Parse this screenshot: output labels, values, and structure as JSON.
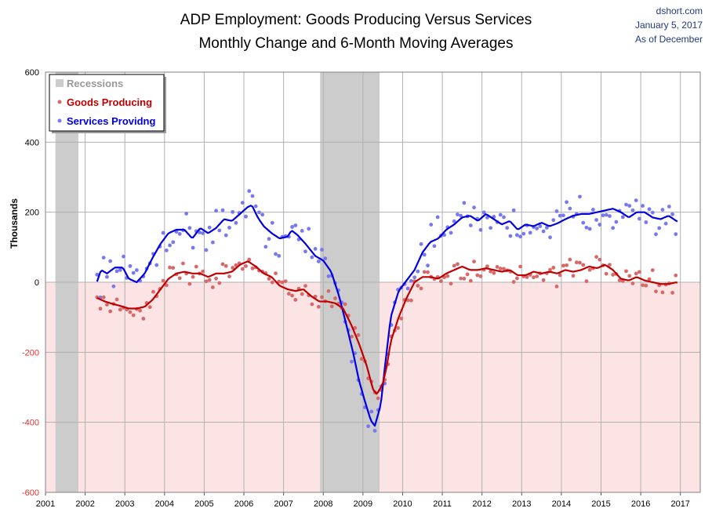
{
  "chart_data": {
    "type": "scatter",
    "title_line1": "ADP Employment: Goods Producing Versus Services",
    "title_line2": "Monthly Change and 6-Month Moving Averages",
    "source": [
      "dshort.com",
      "January 5, 2017",
      "As of December"
    ],
    "ylabel": "Thousands",
    "ylim": [
      -600,
      600
    ],
    "xlim": [
      2001.0,
      2017.5
    ],
    "yticks": [
      "600",
      "400",
      "200",
      "0",
      "-200",
      "-400",
      "-600"
    ],
    "xticks": [
      "2001",
      "2002",
      "2003",
      "2004",
      "2005",
      "2006",
      "2007",
      "2008",
      "2009",
      "2010",
      "2011",
      "2012",
      "2013",
      "2014",
      "2015",
      "2016",
      "2017"
    ],
    "grid": true,
    "legend_position": "top-left",
    "legend": [
      "Recessions",
      "Goods Producing",
      "Services Providng"
    ],
    "recessions": [
      [
        2001.25,
        2001.83
      ],
      [
        2007.92,
        2009.42
      ]
    ],
    "colors": {
      "goods": "#c00000",
      "goods_points": "#d96868",
      "services": "#0000e0",
      "services_points": "#7878f0",
      "recession": "#cccccc",
      "negative_zone": "#fde4e4",
      "negative_tick": "#e03030"
    },
    "series": [
      {
        "name": "Services Providng",
        "ma_knots": [
          [
            2002.3,
            2
          ],
          [
            2002.4,
            35
          ],
          [
            2002.55,
            25
          ],
          [
            2002.75,
            42
          ],
          [
            2002.95,
            42
          ],
          [
            2003.1,
            10
          ],
          [
            2003.3,
            0
          ],
          [
            2003.5,
            25
          ],
          [
            2003.7,
            70
          ],
          [
            2003.9,
            110
          ],
          [
            2004.1,
            140
          ],
          [
            2004.3,
            150
          ],
          [
            2004.5,
            150
          ],
          [
            2004.7,
            125
          ],
          [
            2004.9,
            155
          ],
          [
            2005.1,
            140
          ],
          [
            2005.3,
            155
          ],
          [
            2005.5,
            180
          ],
          [
            2005.7,
            175
          ],
          [
            2005.9,
            195
          ],
          [
            2006.1,
            215
          ],
          [
            2006.2,
            220
          ],
          [
            2006.35,
            185
          ],
          [
            2006.5,
            160
          ],
          [
            2006.7,
            140
          ],
          [
            2006.9,
            125
          ],
          [
            2007.1,
            130
          ],
          [
            2007.2,
            148
          ],
          [
            2007.35,
            135
          ],
          [
            2007.55,
            110
          ],
          [
            2007.8,
            75
          ],
          [
            2008.0,
            62
          ],
          [
            2008.2,
            30
          ],
          [
            2008.4,
            -40
          ],
          [
            2008.6,
            -130
          ],
          [
            2008.75,
            -200
          ],
          [
            2008.9,
            -280
          ],
          [
            2009.05,
            -340
          ],
          [
            2009.2,
            -395
          ],
          [
            2009.3,
            -410
          ],
          [
            2009.45,
            -350
          ],
          [
            2009.55,
            -245
          ],
          [
            2009.7,
            -100
          ],
          [
            2009.9,
            -25
          ],
          [
            2010.1,
            5
          ],
          [
            2010.3,
            35
          ],
          [
            2010.5,
            85
          ],
          [
            2010.7,
            115
          ],
          [
            2010.9,
            125
          ],
          [
            2011.1,
            150
          ],
          [
            2011.3,
            165
          ],
          [
            2011.5,
            185
          ],
          [
            2011.7,
            190
          ],
          [
            2011.9,
            175
          ],
          [
            2012.1,
            195
          ],
          [
            2012.3,
            180
          ],
          [
            2012.5,
            165
          ],
          [
            2012.7,
            175
          ],
          [
            2012.9,
            150
          ],
          [
            2013.1,
            165
          ],
          [
            2013.3,
            160
          ],
          [
            2013.5,
            170
          ],
          [
            2013.7,
            160
          ],
          [
            2013.9,
            168
          ],
          [
            2014.1,
            180
          ],
          [
            2014.3,
            190
          ],
          [
            2014.5,
            195
          ],
          [
            2014.7,
            195
          ],
          [
            2014.9,
            200
          ],
          [
            2015.1,
            205
          ],
          [
            2015.3,
            210
          ],
          [
            2015.5,
            200
          ],
          [
            2015.7,
            185
          ],
          [
            2015.9,
            200
          ],
          [
            2016.1,
            200
          ],
          [
            2016.3,
            185
          ],
          [
            2016.5,
            180
          ],
          [
            2016.7,
            190
          ],
          [
            2016.9,
            175
          ],
          [
            2016.95,
            172
          ]
        ]
      },
      {
        "name": "Goods Producing",
        "ma_knots": [
          [
            2002.3,
            -45
          ],
          [
            2002.5,
            -55
          ],
          [
            2002.7,
            -62
          ],
          [
            2002.9,
            -68
          ],
          [
            2003.1,
            -75
          ],
          [
            2003.3,
            -75
          ],
          [
            2003.5,
            -70
          ],
          [
            2003.7,
            -50
          ],
          [
            2003.9,
            -20
          ],
          [
            2004.1,
            10
          ],
          [
            2004.3,
            25
          ],
          [
            2004.5,
            30
          ],
          [
            2004.7,
            25
          ],
          [
            2004.9,
            25
          ],
          [
            2005.1,
            15
          ],
          [
            2005.3,
            25
          ],
          [
            2005.5,
            25
          ],
          [
            2005.7,
            30
          ],
          [
            2005.9,
            50
          ],
          [
            2006.1,
            60
          ],
          [
            2006.3,
            45
          ],
          [
            2006.5,
            25
          ],
          [
            2006.7,
            15
          ],
          [
            2006.9,
            -10
          ],
          [
            2007.1,
            -20
          ],
          [
            2007.3,
            -25
          ],
          [
            2007.5,
            -20
          ],
          [
            2007.7,
            -40
          ],
          [
            2007.9,
            -55
          ],
          [
            2008.1,
            -55
          ],
          [
            2008.3,
            -60
          ],
          [
            2008.5,
            -75
          ],
          [
            2008.7,
            -120
          ],
          [
            2008.9,
            -175
          ],
          [
            2009.1,
            -240
          ],
          [
            2009.25,
            -305
          ],
          [
            2009.35,
            -320
          ],
          [
            2009.5,
            -290
          ],
          [
            2009.6,
            -240
          ],
          [
            2009.7,
            -170
          ],
          [
            2009.9,
            -100
          ],
          [
            2010.1,
            -45
          ],
          [
            2010.3,
            0
          ],
          [
            2010.5,
            15
          ],
          [
            2010.7,
            15
          ],
          [
            2010.9,
            10
          ],
          [
            2011.1,
            25
          ],
          [
            2011.3,
            35
          ],
          [
            2011.5,
            45
          ],
          [
            2011.7,
            35
          ],
          [
            2011.9,
            35
          ],
          [
            2012.1,
            40
          ],
          [
            2012.3,
            35
          ],
          [
            2012.5,
            30
          ],
          [
            2012.7,
            35
          ],
          [
            2012.9,
            20
          ],
          [
            2013.1,
            20
          ],
          [
            2013.3,
            30
          ],
          [
            2013.5,
            25
          ],
          [
            2013.7,
            30
          ],
          [
            2013.9,
            25
          ],
          [
            2014.1,
            35
          ],
          [
            2014.3,
            30
          ],
          [
            2014.5,
            35
          ],
          [
            2014.7,
            45
          ],
          [
            2014.9,
            40
          ],
          [
            2015.1,
            50
          ],
          [
            2015.3,
            35
          ],
          [
            2015.5,
            10
          ],
          [
            2015.7,
            5
          ],
          [
            2015.9,
            15
          ],
          [
            2016.1,
            5
          ],
          [
            2016.3,
            0
          ],
          [
            2016.5,
            -5
          ],
          [
            2016.7,
            -5
          ],
          [
            2016.9,
            0
          ],
          [
            2016.95,
            -2
          ]
        ]
      }
    ]
  }
}
